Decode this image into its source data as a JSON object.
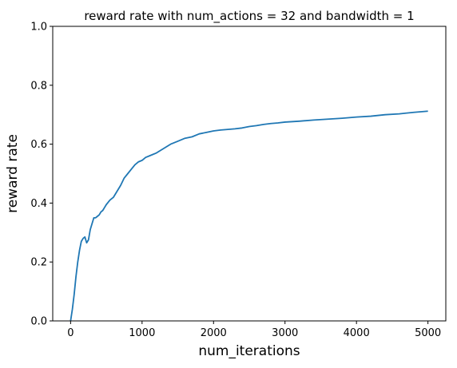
{
  "chart_data": {
    "type": "line",
    "title": "reward rate with num_actions = 32 and bandwidth = 1",
    "xlabel": "num_iterations",
    "ylabel": "reward rate",
    "xlim": [
      -250,
      5250
    ],
    "ylim": [
      0,
      1.0
    ],
    "x_ticks": [
      0,
      1000,
      2000,
      3000,
      4000,
      5000
    ],
    "x_tick_labels": [
      "0",
      "1000",
      "2000",
      "3000",
      "4000",
      "5000"
    ],
    "y_ticks": [
      0.0,
      0.2,
      0.4,
      0.6,
      0.8,
      1.0
    ],
    "y_tick_labels": [
      "0.0",
      "0.2",
      "0.4",
      "0.6",
      "0.8",
      "1.0"
    ],
    "grid": false,
    "legend": "none",
    "series": [
      {
        "color": "#1f77b4",
        "x": [
          0,
          25,
          50,
          75,
          100,
          125,
          150,
          175,
          200,
          225,
          250,
          275,
          300,
          325,
          350,
          375,
          400,
          425,
          450,
          475,
          500,
          550,
          600,
          650,
          700,
          750,
          800,
          850,
          900,
          950,
          1000,
          1050,
          1100,
          1150,
          1200,
          1300,
          1400,
          1500,
          1600,
          1700,
          1800,
          1900,
          2000,
          2100,
          2200,
          2300,
          2400,
          2500,
          2600,
          2700,
          2800,
          2900,
          3000,
          3200,
          3400,
          3600,
          3800,
          4000,
          4200,
          4400,
          4600,
          4800,
          5000
        ],
        "y": [
          0.0,
          0.04,
          0.09,
          0.15,
          0.2,
          0.24,
          0.27,
          0.28,
          0.285,
          0.265,
          0.275,
          0.31,
          0.33,
          0.35,
          0.35,
          0.355,
          0.36,
          0.37,
          0.375,
          0.385,
          0.395,
          0.41,
          0.42,
          0.44,
          0.46,
          0.485,
          0.5,
          0.515,
          0.53,
          0.54,
          0.545,
          0.555,
          0.56,
          0.565,
          0.57,
          0.585,
          0.6,
          0.61,
          0.62,
          0.625,
          0.635,
          0.64,
          0.645,
          0.648,
          0.65,
          0.652,
          0.655,
          0.66,
          0.663,
          0.667,
          0.67,
          0.672,
          0.675,
          0.678,
          0.682,
          0.685,
          0.688,
          0.692,
          0.695,
          0.7,
          0.703,
          0.708,
          0.712
        ]
      }
    ]
  }
}
